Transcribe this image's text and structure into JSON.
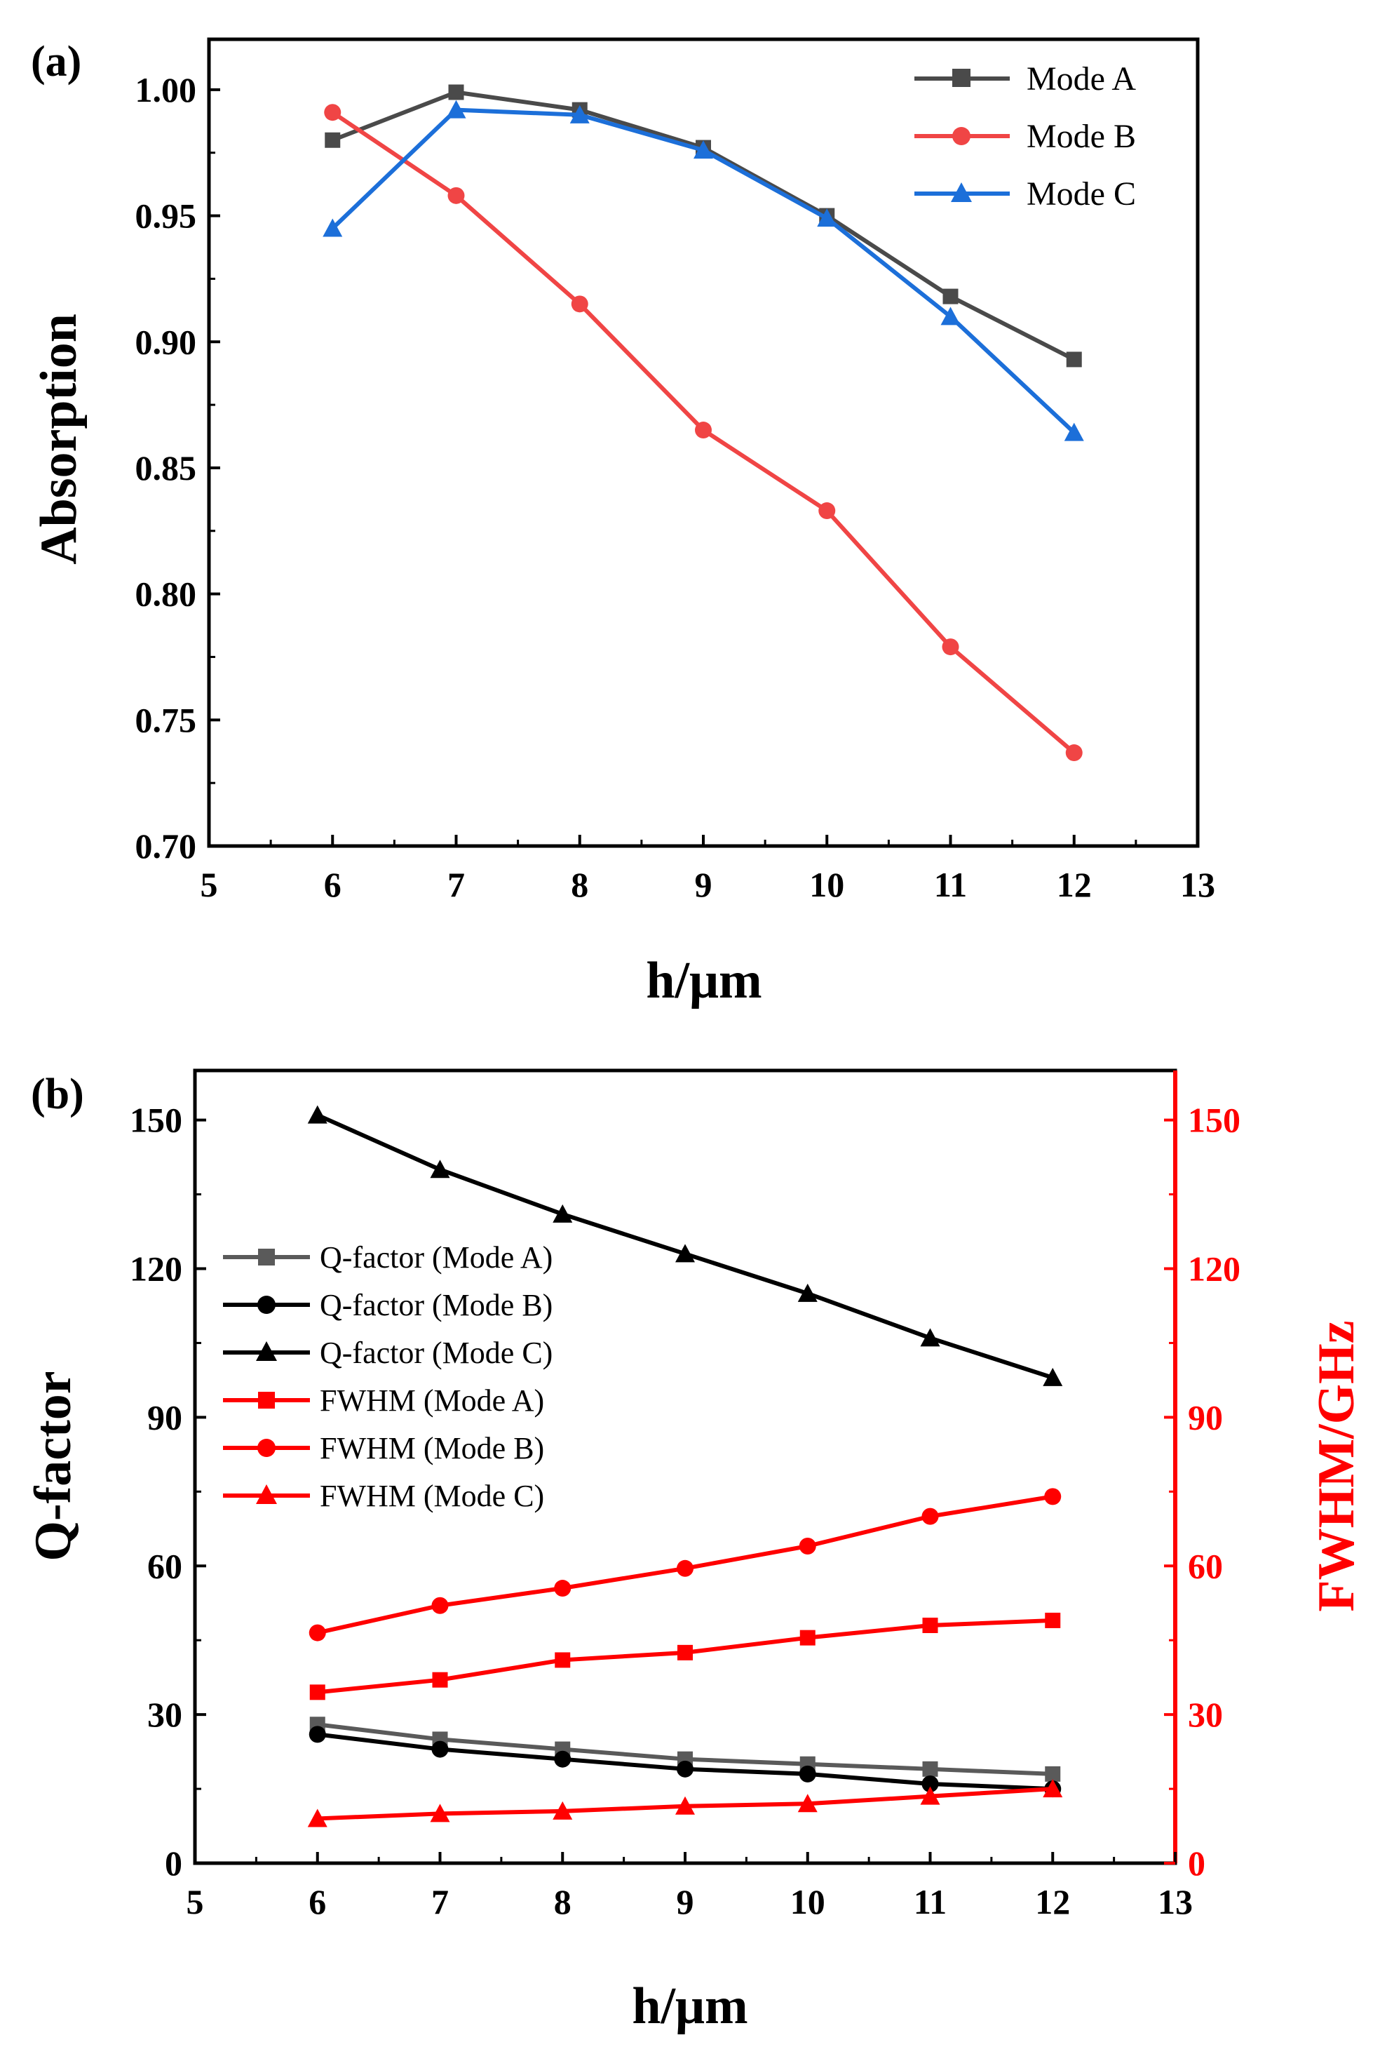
{
  "chart_data": [
    {
      "type": "line",
      "panel_label": "(a)",
      "xlabel": "h/μm",
      "ylabel": "Absorption",
      "xlim": [
        5,
        13
      ],
      "ylim": [
        0.7,
        1.02
      ],
      "xticks": [
        5,
        6,
        7,
        8,
        9,
        10,
        11,
        12,
        13
      ],
      "yticks": [
        0.7,
        0.75,
        0.8,
        0.85,
        0.9,
        0.95,
        1.0
      ],
      "ytick_labels": [
        "0.70",
        "0.75",
        "0.80",
        "0.85",
        "0.90",
        "0.95",
        "1.00"
      ],
      "legend_position": "top-right",
      "x": [
        6,
        7,
        8,
        9,
        10,
        11,
        12
      ],
      "series": [
        {
          "name": "Mode A",
          "marker": "square",
          "color": "#4a4a4a",
          "values": [
            0.98,
            0.999,
            0.992,
            0.977,
            0.95,
            0.918,
            0.893
          ]
        },
        {
          "name": "Mode B",
          "marker": "circle",
          "color": "#f04545",
          "values": [
            0.991,
            0.958,
            0.915,
            0.865,
            0.833,
            0.779,
            0.737
          ]
        },
        {
          "name": "Mode C",
          "marker": "triangle",
          "color": "#1c6fd9",
          "values": [
            0.945,
            0.992,
            0.99,
            0.976,
            0.949,
            0.91,
            0.864
          ]
        }
      ]
    },
    {
      "type": "line",
      "panel_label": "(b)",
      "xlabel": "h/μm",
      "ylabel": "Q-factor",
      "y2label": "FWHM/GHz",
      "xlim": [
        5,
        13
      ],
      "ylim": [
        0,
        160
      ],
      "y2lim": [
        0,
        160
      ],
      "xticks": [
        5,
        6,
        7,
        8,
        9,
        10,
        11,
        12,
        13
      ],
      "yticks": [
        0,
        30,
        60,
        90,
        120,
        150
      ],
      "y2ticks": [
        0,
        30,
        60,
        90,
        120,
        150
      ],
      "legend_position": "center-left",
      "x": [
        6,
        7,
        8,
        9,
        10,
        11,
        12
      ],
      "series": [
        {
          "name": "Q-factor (Mode A)",
          "axis": "left",
          "marker": "square",
          "color": "#5a5a5a",
          "values": [
            28,
            25,
            23,
            21,
            20,
            19,
            18
          ]
        },
        {
          "name": "Q-factor (Mode B)",
          "axis": "left",
          "marker": "circle",
          "color": "#000000",
          "values": [
            26,
            23,
            21,
            19,
            18,
            16,
            15
          ]
        },
        {
          "name": "Q-factor (Mode C)",
          "axis": "left",
          "marker": "triangle",
          "color": "#000000",
          "values": [
            151,
            140,
            131,
            123,
            115,
            106,
            98
          ]
        },
        {
          "name": "FWHM (Mode A)",
          "axis": "right",
          "marker": "square",
          "color": "#ff0000",
          "values": [
            34.5,
            37,
            41,
            42.5,
            45.5,
            48,
            49
          ]
        },
        {
          "name": "FWHM (Mode B)",
          "axis": "right",
          "marker": "circle",
          "color": "#ff0000",
          "values": [
            46.5,
            52,
            55.5,
            59.5,
            64,
            70,
            74
          ]
        },
        {
          "name": "FWHM (Mode C)",
          "axis": "right",
          "marker": "triangle",
          "color": "#ff0000",
          "values": [
            9,
            10,
            10.5,
            11.5,
            12,
            13.5,
            15
          ]
        }
      ]
    }
  ]
}
